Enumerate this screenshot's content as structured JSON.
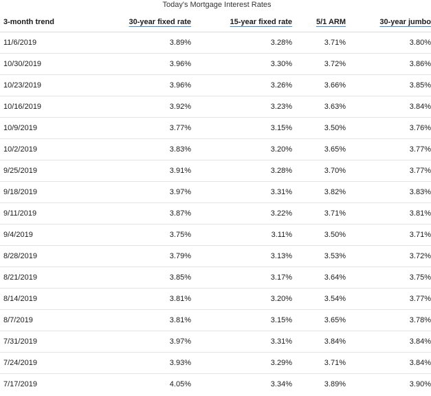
{
  "caption": "Today's Mortgage Interest Rates",
  "columns": [
    "3-month trend",
    "30-year fixed rate",
    "15-year fixed rate",
    "5/1 ARM",
    "30-year jumbo"
  ],
  "rows": [
    [
      "11/6/2019",
      "3.89%",
      "3.28%",
      "3.71%",
      "3.80%"
    ],
    [
      "10/30/2019",
      "3.96%",
      "3.30%",
      "3.72%",
      "3.86%"
    ],
    [
      "10/23/2019",
      "3.96%",
      "3.26%",
      "3.66%",
      "3.85%"
    ],
    [
      "10/16/2019",
      "3.92%",
      "3.23%",
      "3.63%",
      "3.84%"
    ],
    [
      "10/9/2019",
      "3.77%",
      "3.15%",
      "3.50%",
      "3.76%"
    ],
    [
      "10/2/2019",
      "3.83%",
      "3.20%",
      "3.65%",
      "3.77%"
    ],
    [
      "9/25/2019",
      "3.91%",
      "3.28%",
      "3.70%",
      "3.77%"
    ],
    [
      "9/18/2019",
      "3.97%",
      "3.31%",
      "3.82%",
      "3.83%"
    ],
    [
      "9/11/2019",
      "3.87%",
      "3.22%",
      "3.71%",
      "3.81%"
    ],
    [
      "9/4/2019",
      "3.75%",
      "3.11%",
      "3.50%",
      "3.71%"
    ],
    [
      "8/28/2019",
      "3.79%",
      "3.13%",
      "3.53%",
      "3.72%"
    ],
    [
      "8/21/2019",
      "3.85%",
      "3.17%",
      "3.64%",
      "3.75%"
    ],
    [
      "8/14/2019",
      "3.81%",
      "3.20%",
      "3.54%",
      "3.77%"
    ],
    [
      "8/7/2019",
      "3.81%",
      "3.15%",
      "3.65%",
      "3.78%"
    ],
    [
      "7/31/2019",
      "3.97%",
      "3.31%",
      "3.84%",
      "3.84%"
    ],
    [
      "7/24/2019",
      "3.93%",
      "3.29%",
      "3.71%",
      "3.84%"
    ],
    [
      "7/17/2019",
      "4.05%",
      "3.34%",
      "3.89%",
      "3.90%"
    ]
  ]
}
